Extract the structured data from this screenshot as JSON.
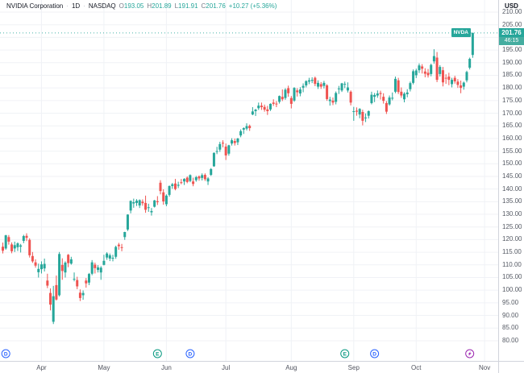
{
  "header": {
    "symbol_title": "NVIDIA Corporation",
    "separator": "·",
    "interval": "1D",
    "exchange": "NASDAQ",
    "ohlc": {
      "open_label": "O",
      "open": "193.05",
      "high_label": "H",
      "high": "201.89",
      "low_label": "L",
      "low": "191.91",
      "close_label": "C",
      "close": "201.76",
      "change": "+10.27 (+5.36%)"
    }
  },
  "price_axis": {
    "currency": "USD",
    "labels": [
      "210.00",
      "205.00",
      "200.00",
      "195.00",
      "190.00",
      "185.00",
      "180.00",
      "175.00",
      "170.00",
      "165.00",
      "160.00",
      "155.00",
      "150.00",
      "145.00",
      "140.00",
      "135.00",
      "130.00",
      "125.00",
      "120.00",
      "115.00",
      "110.00",
      "105.00",
      "100.00",
      "95.00",
      "90.00",
      "85.00",
      "80.00"
    ],
    "badge": {
      "symbol": "NVDA",
      "price": "201.76",
      "countdown": "46:15"
    }
  },
  "time_axis": {
    "months": [
      {
        "label": "Apr",
        "index": 13
      },
      {
        "label": "May",
        "index": 34
      },
      {
        "label": "Jun",
        "index": 55
      },
      {
        "label": "Jul",
        "index": 75
      },
      {
        "label": "Aug",
        "index": 97
      },
      {
        "label": "Sep",
        "index": 118
      },
      {
        "label": "Oct",
        "index": 139
      },
      {
        "label": "Nov",
        "index": 162
      }
    ]
  },
  "events": [
    {
      "type": "dividend",
      "label": "D",
      "index": 1
    },
    {
      "type": "earnings",
      "label": "E",
      "index": 52
    },
    {
      "type": "dividend",
      "label": "D",
      "index": 63
    },
    {
      "type": "earnings",
      "label": "E",
      "index": 115
    },
    {
      "type": "dividend",
      "label": "D",
      "index": 125
    },
    {
      "type": "upcoming-event",
      "label": "",
      "index": 157
    }
  ],
  "colors": {
    "up": "#26a69a",
    "down": "#ef5350",
    "dividend": "#2962ff",
    "earnings": "#089981",
    "upcoming-event": "#9c27b0",
    "grid": "#f0f2f6",
    "axis_border": "#d1d4dc",
    "axis_text": "#555a64",
    "title_text": "#131722",
    "muted_text": "#787b86",
    "badge_bg": "#26a69a"
  },
  "chart_data": {
    "type": "candlestick",
    "title": "NVIDIA Corporation · 1D · NASDAQ",
    "ylabel": "USD",
    "ylim": [
      77,
      212
    ],
    "y_tick_step": 5,
    "x_tick_labels": [
      "Apr",
      "May",
      "Jun",
      "Jul",
      "Aug",
      "Sep",
      "Oct",
      "Nov"
    ],
    "grid": true,
    "last_trade": {
      "open": 193.05,
      "high": 201.89,
      "low": 191.91,
      "close": 201.76,
      "change": 10.27,
      "change_pct": 5.36
    },
    "ohlc": [
      [
        117.2,
        118.8,
        114.5,
        115.6
      ],
      [
        116.5,
        121.9,
        116.0,
        121.7
      ],
      [
        121.0,
        121.8,
        118.0,
        119.2
      ],
      [
        118.1,
        118.9,
        114.6,
        115.4
      ],
      [
        116.5,
        119.2,
        115.1,
        117.8
      ],
      [
        117.0,
        118.9,
        115.5,
        118.5
      ],
      [
        117.2,
        118.3,
        114.9,
        117.7
      ],
      [
        119.5,
        121.9,
        118.6,
        121.4
      ],
      [
        121.5,
        122.5,
        119.4,
        120.7
      ],
      [
        119.9,
        120.5,
        112.9,
        113.8
      ],
      [
        113.5,
        115.1,
        110.8,
        111.4
      ],
      [
        111.0,
        112.2,
        108.9,
        109.7
      ],
      [
        107.1,
        110.5,
        105.0,
        108.4
      ],
      [
        108.3,
        111.4,
        106.6,
        110.2
      ],
      [
        108.6,
        112.5,
        107.4,
        110.4
      ],
      [
        103.8,
        106.5,
        100.8,
        101.8
      ],
      [
        98.9,
        100.7,
        92.0,
        94.3
      ],
      [
        87.5,
        101.7,
        86.6,
        97.6
      ],
      [
        102.0,
        105.8,
        95.9,
        96.3
      ],
      [
        98.0,
        115.1,
        97.5,
        114.3
      ],
      [
        110.0,
        112.6,
        104.1,
        107.6
      ],
      [
        107.0,
        111.4,
        105.0,
        110.9
      ],
      [
        114.0,
        114.3,
        109.1,
        110.7
      ],
      [
        110.5,
        113.2,
        110.1,
        112.2
      ],
      [
        104.5,
        107.0,
        103.5,
        104.5
      ],
      [
        104.0,
        105.3,
        100.4,
        101.5
      ],
      [
        99.0,
        100.3,
        95.7,
        96.9
      ],
      [
        98.0,
        99.9,
        96.2,
        98.9
      ],
      [
        103.8,
        104.8,
        101.0,
        102.7
      ],
      [
        103.0,
        106.8,
        102.0,
        106.4
      ],
      [
        106.5,
        111.9,
        105.9,
        111.0
      ],
      [
        110.1,
        110.9,
        106.6,
        108.7
      ],
      [
        108.0,
        109.9,
        107.0,
        109.0
      ],
      [
        107.0,
        109.5,
        104.1,
        108.9
      ],
      [
        110.0,
        114.0,
        109.8,
        111.6
      ],
      [
        112.9,
        115.0,
        112.0,
        114.5
      ],
      [
        112.5,
        114.5,
        111.5,
        113.8
      ],
      [
        112.5,
        114.0,
        111.4,
        112.8
      ],
      [
        113.2,
        117.6,
        112.4,
        117.1
      ],
      [
        118.0,
        118.7,
        116.0,
        117.4
      ],
      [
        117.0,
        118.3,
        115.4,
        116.7
      ],
      [
        121.0,
        123.1,
        119.9,
        123.0
      ],
      [
        124.0,
        130.0,
        123.4,
        129.9
      ],
      [
        131.5,
        135.5,
        130.4,
        135.3
      ],
      [
        134.3,
        136.2,
        132.6,
        134.8
      ],
      [
        134.5,
        136.0,
        133.3,
        135.4
      ],
      [
        133.5,
        135.9,
        132.5,
        135.6
      ],
      [
        135.0,
        135.9,
        133.4,
        134.4
      ],
      [
        134.5,
        137.4,
        130.6,
        131.8
      ],
      [
        132.5,
        134.2,
        131.0,
        132.8
      ],
      [
        130.8,
        132.5,
        129.5,
        131.3
      ],
      [
        133.0,
        135.7,
        132.7,
        135.5
      ],
      [
        135.2,
        137.2,
        133.7,
        134.8
      ],
      [
        142.5,
        143.5,
        137.9,
        139.2
      ],
      [
        138.7,
        139.9,
        133.8,
        135.1
      ],
      [
        134.0,
        137.9,
        133.2,
        137.4
      ],
      [
        137.7,
        141.4,
        137.0,
        141.2
      ],
      [
        141.2,
        142.4,
        140.1,
        141.9
      ],
      [
        142.2,
        144.0,
        139.5,
        140.0
      ],
      [
        141.3,
        142.9,
        140.4,
        141.7
      ],
      [
        142.7,
        144.0,
        141.9,
        142.6
      ],
      [
        143.0,
        144.3,
        141.6,
        144.0
      ],
      [
        144.5,
        145.0,
        142.3,
        142.8
      ],
      [
        143.2,
        145.8,
        142.7,
        145.5
      ],
      [
        143.0,
        144.5,
        141.1,
        142.0
      ],
      [
        143.5,
        145.2,
        142.9,
        144.7
      ],
      [
        145.0,
        145.4,
        143.3,
        144.2
      ],
      [
        144.4,
        146.2,
        143.4,
        145.5
      ],
      [
        145.6,
        146.2,
        143.2,
        143.9
      ],
      [
        143.0,
        144.7,
        141.6,
        144.2
      ],
      [
        145.6,
        148.3,
        145.2,
        147.9
      ],
      [
        149.0,
        154.5,
        148.8,
        154.3
      ],
      [
        155.0,
        156.7,
        153.8,
        155.0
      ],
      [
        155.6,
        158.7,
        154.7,
        157.8
      ],
      [
        158.3,
        159.3,
        156.5,
        158.0
      ],
      [
        156.8,
        158.0,
        151.5,
        153.3
      ],
      [
        154.0,
        157.5,
        153.2,
        157.3
      ],
      [
        158.0,
        160.1,
        157.2,
        159.3
      ],
      [
        159.0,
        160.0,
        157.2,
        158.2
      ],
      [
        158.5,
        160.2,
        157.4,
        160.0
      ],
      [
        161.2,
        163.6,
        160.5,
        162.9
      ],
      [
        163.5,
        164.4,
        161.8,
        164.1
      ],
      [
        163.9,
        166.0,
        163.2,
        164.9
      ],
      [
        165.0,
        165.5,
        163.0,
        164.1
      ],
      [
        169.5,
        172.4,
        169.2,
        170.7
      ],
      [
        170.8,
        171.7,
        168.9,
        171.4
      ],
      [
        172.0,
        174.2,
        171.3,
        173.0
      ],
      [
        173.0,
        174.2,
        171.3,
        172.4
      ],
      [
        172.5,
        173.4,
        170.6,
        171.4
      ],
      [
        171.5,
        172.9,
        169.3,
        170.8
      ],
      [
        171.5,
        173.9,
        170.9,
        173.7
      ],
      [
        174.2,
        175.5,
        172.9,
        173.7
      ],
      [
        173.8,
        174.8,
        172.4,
        173.5
      ],
      [
        174.5,
        177.0,
        173.8,
        176.8
      ],
      [
        176.5,
        179.4,
        174.8,
        175.5
      ],
      [
        176.0,
        179.9,
        175.3,
        179.3
      ],
      [
        179.9,
        180.9,
        176.5,
        177.9
      ],
      [
        176.0,
        176.8,
        171.9,
        173.7
      ],
      [
        175.0,
        180.3,
        174.5,
        180.0
      ],
      [
        179.0,
        179.9,
        176.6,
        178.3
      ],
      [
        177.8,
        180.3,
        176.7,
        179.4
      ],
      [
        180.1,
        181.8,
        178.3,
        180.8
      ],
      [
        181.0,
        183.0,
        180.2,
        182.7
      ],
      [
        182.5,
        184.0,
        181.5,
        183.0
      ],
      [
        182.8,
        184.2,
        181.9,
        183.2
      ],
      [
        184.0,
        184.5,
        180.7,
        181.6
      ],
      [
        180.5,
        183.0,
        179.6,
        182.0
      ],
      [
        181.5,
        182.3,
        179.6,
        180.5
      ],
      [
        180.8,
        182.8,
        179.8,
        182.0
      ],
      [
        181.0,
        181.5,
        174.9,
        175.6
      ],
      [
        174.8,
        176.5,
        173.0,
        175.4
      ],
      [
        175.0,
        176.2,
        173.2,
        174.2
      ],
      [
        174.5,
        178.6,
        173.5,
        178.0
      ],
      [
        179.5,
        180.8,
        177.6,
        179.8
      ],
      [
        179.0,
        182.0,
        178.4,
        181.8
      ],
      [
        181.5,
        182.5,
        179.9,
        181.6
      ],
      [
        179.0,
        182.2,
        178.2,
        180.2
      ],
      [
        178.5,
        179.0,
        173.1,
        174.2
      ],
      [
        170.5,
        172.5,
        167.0,
        170.8
      ],
      [
        171.0,
        172.3,
        169.0,
        170.6
      ],
      [
        169.5,
        172.0,
        168.0,
        171.7
      ],
      [
        170.5,
        171.4,
        165.2,
        167.0
      ],
      [
        168.0,
        169.9,
        166.5,
        168.3
      ],
      [
        169.0,
        171.1,
        167.9,
        170.8
      ],
      [
        174.0,
        178.5,
        173.5,
        177.3
      ],
      [
        176.5,
        178.0,
        174.4,
        177.2
      ],
      [
        177.0,
        179.0,
        176.1,
        177.8
      ],
      [
        178.0,
        178.9,
        175.4,
        177.6
      ],
      [
        176.5,
        177.9,
        173.8,
        174.9
      ],
      [
        174.0,
        174.8,
        169.7,
        170.6
      ],
      [
        173.5,
        177.0,
        173.0,
        176.2
      ],
      [
        176.0,
        178.2,
        175.1,
        176.1
      ],
      [
        178.5,
        184.5,
        177.9,
        183.6
      ],
      [
        183.0,
        184.0,
        177.6,
        178.4
      ],
      [
        178.5,
        180.2,
        176.1,
        177.0
      ],
      [
        175.5,
        178.3,
        174.3,
        177.7
      ],
      [
        177.5,
        179.5,
        176.3,
        178.2
      ],
      [
        179.5,
        182.5,
        178.6,
        181.9
      ],
      [
        182.0,
        187.3,
        181.4,
        186.6
      ],
      [
        185.0,
        187.6,
        183.9,
        186.9
      ],
      [
        187.0,
        189.7,
        185.9,
        188.9
      ],
      [
        188.5,
        189.4,
        185.7,
        187.6
      ],
      [
        186.5,
        187.8,
        184.2,
        185.6
      ],
      [
        186.0,
        187.5,
        184.1,
        185.0
      ],
      [
        185.5,
        189.6,
        184.6,
        189.1
      ],
      [
        190.5,
        195.3,
        189.6,
        192.6
      ],
      [
        192.0,
        194.2,
        182.3,
        183.2
      ],
      [
        185.5,
        189.0,
        184.5,
        188.3
      ],
      [
        187.0,
        188.3,
        180.6,
        182.2
      ],
      [
        184.0,
        185.4,
        181.6,
        183.9
      ],
      [
        184.5,
        186.0,
        181.1,
        183.2
      ],
      [
        181.5,
        184.0,
        180.2,
        183.2
      ],
      [
        184.0,
        184.8,
        181.7,
        182.6
      ],
      [
        182.5,
        183.5,
        180.0,
        181.2
      ],
      [
        181.0,
        182.9,
        177.9,
        180.0
      ],
      [
        180.5,
        182.5,
        179.3,
        182.1
      ],
      [
        183.0,
        186.8,
        182.2,
        186.3
      ],
      [
        188.0,
        192.0,
        187.3,
        191.5
      ],
      [
        193.05,
        201.89,
        191.91,
        201.76
      ]
    ]
  }
}
